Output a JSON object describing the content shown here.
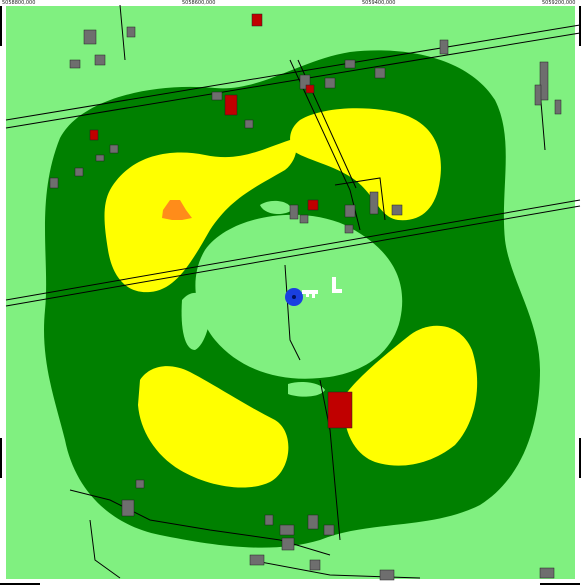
{
  "map": {
    "frame_coordinates": [
      "5058800,000",
      "5058600,000",
      "5059400,000",
      "5059200,000"
    ],
    "colors": {
      "background": "#80f080",
      "zone_dark_green": "#008000",
      "zone_yellow": "#ffff00",
      "zone_orange": "#ff8c1a",
      "building_gray": "#6e6e6e",
      "building_red": "#c00000",
      "marker_blue": "#1a3fe0",
      "road_line": "#000000"
    },
    "markers": [
      {
        "name": "source-marker",
        "icon": "blue-dot-icon"
      },
      {
        "name": "key-symbol",
        "icon": "key-icon"
      },
      {
        "name": "l-symbol",
        "icon": "l-shape-icon"
      }
    ]
  }
}
